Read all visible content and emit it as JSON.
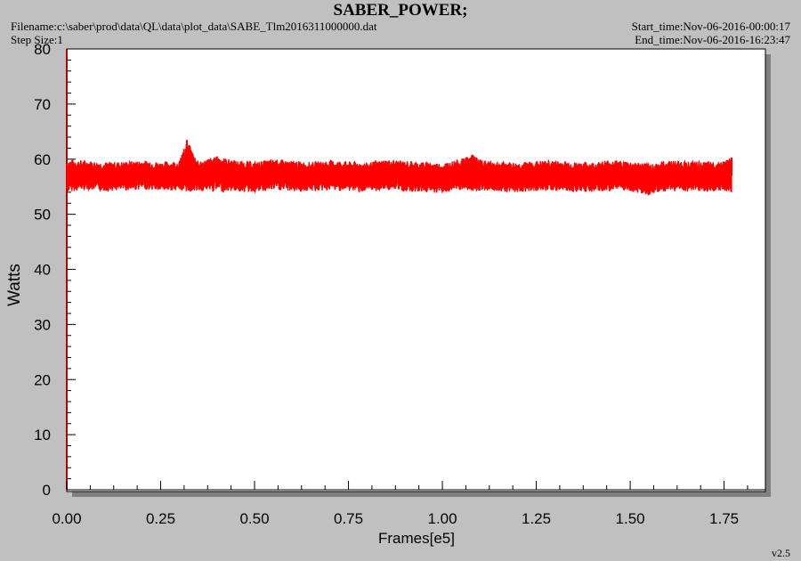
{
  "header": {
    "title": "SABER_POWER;",
    "filename": "Filename:c:\\saber\\prod\\data\\QL\\data\\plot_data\\SABE_Tlm2016311000000.dat",
    "step_size": "Step Size:1",
    "start_time": "Start_time:Nov-06-2016-00:00:17",
    "end_time": "End_time:Nov-06-2016-16:23:47"
  },
  "footer": {
    "version": "v2.5"
  },
  "colors": {
    "series": "#ff0000",
    "axis": "#000000",
    "plot_bg": "#ffffff",
    "page_bg": "#c0c0c0",
    "shadow": "#808080"
  },
  "chart_data": {
    "type": "line",
    "title": "SABER_POWER;",
    "xlabel": "Frames[e5]",
    "ylabel": "Watts",
    "xlim": [
      0,
      1.86
    ],
    "ylim": [
      0,
      80
    ],
    "x_ticks": [
      "0.00",
      "0.25",
      "0.50",
      "0.75",
      "1.00",
      "1.25",
      "1.50",
      "1.75"
    ],
    "y_ticks": [
      "0",
      "10",
      "20",
      "30",
      "40",
      "50",
      "60",
      "70",
      "80"
    ],
    "grid": false,
    "legend": "none",
    "series": [
      {
        "x": [
          0.0,
          0.05,
          0.1,
          0.15,
          0.2,
          0.25,
          0.3,
          0.32,
          0.35,
          0.4,
          0.45,
          0.5,
          0.55,
          0.6,
          0.65,
          0.7,
          0.75,
          0.8,
          0.85,
          0.9,
          0.95,
          1.0,
          1.05,
          1.08,
          1.1,
          1.15,
          1.2,
          1.25,
          1.3,
          1.35,
          1.4,
          1.45,
          1.5,
          1.55,
          1.6,
          1.65,
          1.7,
          1.75,
          1.77
        ],
        "y": [
          57.0,
          57.2,
          56.8,
          57.0,
          57.3,
          56.9,
          57.1,
          58.5,
          56.8,
          58.0,
          57.2,
          56.8,
          57.5,
          57.0,
          56.9,
          57.2,
          57.0,
          56.8,
          57.3,
          57.1,
          56.9,
          56.7,
          57.4,
          58.0,
          57.3,
          57.0,
          56.8,
          57.1,
          57.2,
          56.9,
          56.8,
          57.3,
          57.0,
          56.5,
          57.2,
          57.0,
          56.9,
          57.1,
          57.0
        ],
        "y_min": [
          54.0,
          54.5,
          54.2,
          54.3,
          54.5,
          54.2,
          54.4,
          54.0,
          54.3,
          54.0,
          54.2,
          54.0,
          54.3,
          54.2,
          54.1,
          54.3,
          54.2,
          54.0,
          54.4,
          54.2,
          54.0,
          53.8,
          54.3,
          54.2,
          54.3,
          54.2,
          54.0,
          54.2,
          54.3,
          54.1,
          54.0,
          54.2,
          54.1,
          53.5,
          54.2,
          54.1,
          54.0,
          54.2,
          54.0
        ],
        "y_max": [
          60.0,
          59.8,
          59.5,
          59.6,
          59.8,
          59.5,
          59.7,
          63.5,
          59.6,
          60.5,
          59.8,
          59.5,
          60.0,
          59.7,
          59.5,
          59.8,
          59.6,
          59.4,
          59.9,
          59.7,
          59.5,
          59.3,
          60.0,
          60.8,
          59.9,
          59.6,
          59.4,
          59.7,
          59.8,
          59.5,
          59.4,
          59.9,
          59.6,
          59.2,
          59.8,
          59.7,
          59.5,
          59.7,
          60.3
        ]
      }
    ]
  }
}
